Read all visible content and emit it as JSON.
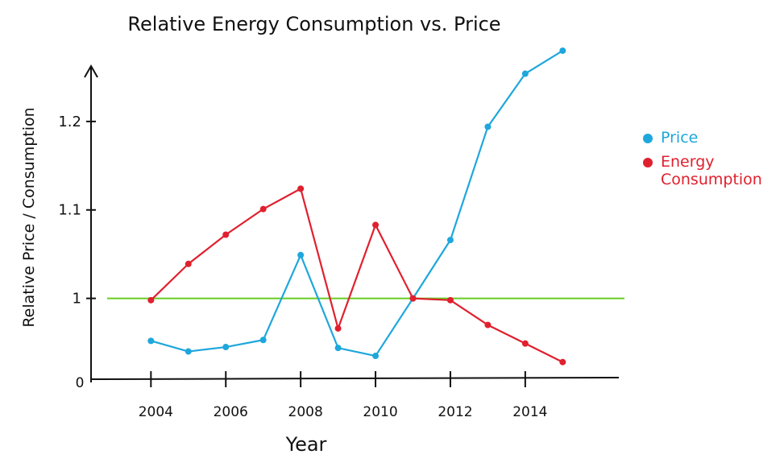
{
  "chart_data": {
    "type": "line",
    "title": "Relative Energy Consumption vs. Price",
    "x_label": "Year",
    "y_label": "Relative Price / Consumption",
    "origin_label": "0",
    "x": [
      2004,
      2005,
      2006,
      2007,
      2008,
      2009,
      2010,
      2011,
      2012,
      2013,
      2014,
      2015
    ],
    "series": [
      {
        "name": "Price",
        "color": "#1ea7dc",
        "values": [
          0.952,
          0.94,
          0.945,
          0.953,
          1.049,
          0.944,
          0.935,
          1.0,
          1.066,
          1.194,
          1.254,
          1.28
        ]
      },
      {
        "name": "Energy Consumption",
        "color": "#e0202e",
        "values": [
          0.998,
          1.039,
          1.072,
          1.101,
          1.124,
          0.966,
          1.083,
          1.0,
          0.998,
          0.97,
          0.949,
          0.928
        ]
      }
    ],
    "reference_line": {
      "value": 1,
      "color": "#66cc22"
    },
    "xlim": [
      2002.4,
      2016.5
    ],
    "xticks": [
      2004,
      2006,
      2008,
      2010,
      2012,
      2014
    ],
    "ylim": [
      0.905,
      1.3
    ],
    "yticks": [
      1,
      1.1,
      1.2
    ],
    "grid": false,
    "legend_position": "right"
  }
}
